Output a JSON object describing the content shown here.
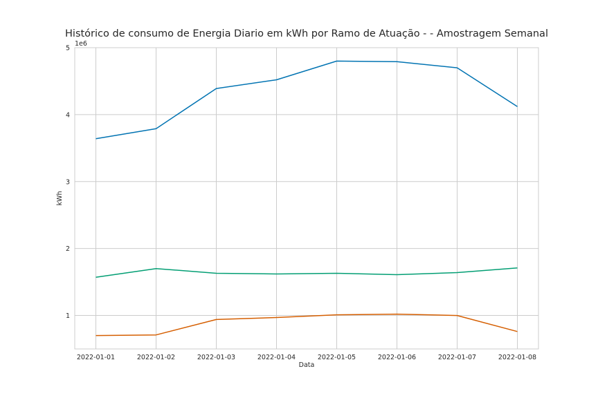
{
  "chart_data": {
    "type": "line",
    "title": "Histórico de consumo de Energia Diario em kWh por Ramo de Atuação -  - Amostragem Semanal",
    "xlabel": "Data",
    "ylabel": "kWh",
    "y_offset_label": "1e6",
    "ylim": [
      0.5,
      5.0
    ],
    "yticks": [
      1,
      2,
      3,
      4,
      5
    ],
    "x": [
      "2022-01-01",
      "2022-01-02",
      "2022-01-03",
      "2022-01-04",
      "2022-01-05",
      "2022-01-06",
      "2022-01-07",
      "2022-01-08"
    ],
    "grid": true,
    "series": [
      {
        "color": "#0173b2",
        "values": [
          3.64,
          3.79,
          4.39,
          4.52,
          4.8,
          4.79,
          4.7,
          4.12
        ]
      },
      {
        "color": "#029e73",
        "values": [
          1.57,
          1.7,
          1.63,
          1.62,
          1.63,
          1.61,
          1.64,
          1.71
        ]
      },
      {
        "color": "#d55e00",
        "values": [
          0.7,
          0.71,
          0.94,
          0.97,
          1.01,
          1.02,
          1.0,
          0.76
        ]
      }
    ]
  }
}
